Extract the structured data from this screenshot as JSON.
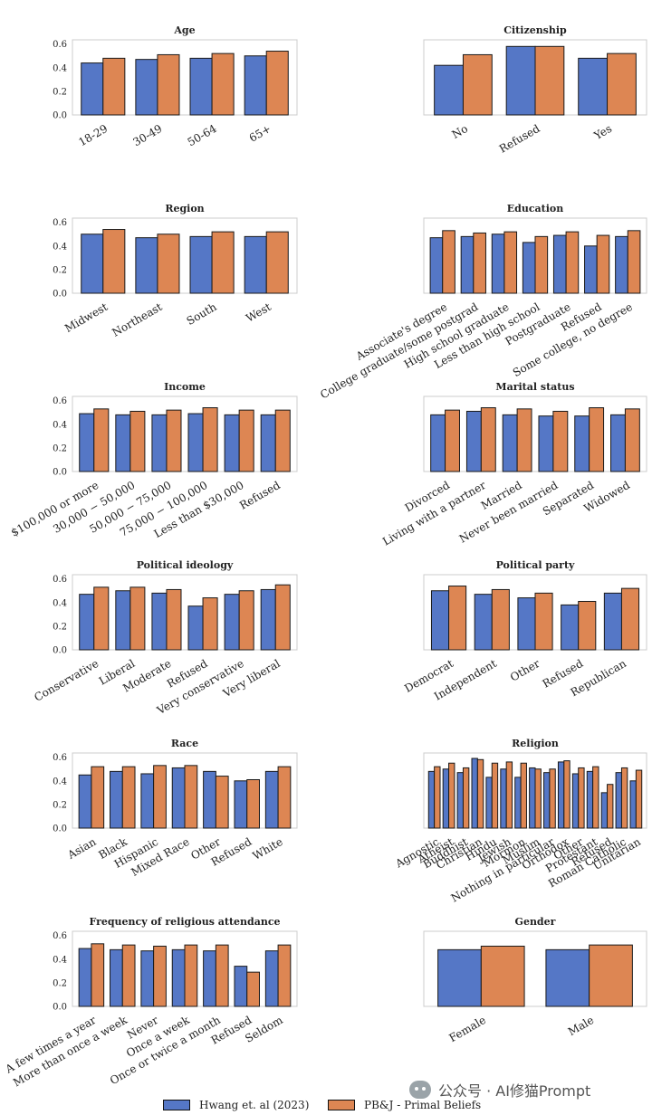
{
  "colors": {
    "series_a": "#5577c6",
    "series_b": "#dd8653",
    "edge": "#1a1a1a",
    "frame": "#cccccc"
  },
  "legend": {
    "series_a": "Hwang et. al (2023)",
    "series_b": "PB&J - Primal Beliefs"
  },
  "watermark": {
    "icon": "wechat-icon",
    "text": "公众号 · AI修猫Prompt"
  },
  "chart_data": [
    {
      "type": "bar",
      "title": "Age",
      "ylim": [
        0,
        0.6
      ],
      "yticks": [
        "0.0",
        "0.2",
        "0.4",
        "0.6"
      ],
      "categories": [
        "18-29",
        "30-49",
        "50-64",
        "65+"
      ],
      "series": [
        {
          "name": "Hwang et. al (2023)",
          "values": [
            0.44,
            0.47,
            0.48,
            0.5
          ]
        },
        {
          "name": "PB&J - Primal Beliefs",
          "values": [
            0.48,
            0.51,
            0.52,
            0.54
          ]
        }
      ]
    },
    {
      "type": "bar",
      "title": "Citizenship",
      "ylim": [
        0,
        0.6
      ],
      "yticks": [],
      "categories": [
        "No",
        "Refused",
        "Yes"
      ],
      "series": [
        {
          "name": "Hwang et. al (2023)",
          "values": [
            0.42,
            0.58,
            0.48
          ]
        },
        {
          "name": "PB&J - Primal Beliefs",
          "values": [
            0.51,
            0.58,
            0.52
          ]
        }
      ]
    },
    {
      "type": "bar",
      "title": "Region",
      "ylim": [
        0,
        0.6
      ],
      "yticks": [
        "0.0",
        "0.2",
        "0.4",
        "0.6"
      ],
      "categories": [
        "Midwest",
        "Northeast",
        "South",
        "West"
      ],
      "series": [
        {
          "name": "Hwang et. al (2023)",
          "values": [
            0.5,
            0.47,
            0.48,
            0.48
          ]
        },
        {
          "name": "PB&J - Primal Beliefs",
          "values": [
            0.54,
            0.5,
            0.52,
            0.52
          ]
        }
      ]
    },
    {
      "type": "bar",
      "title": "Education",
      "ylim": [
        0,
        0.6
      ],
      "yticks": [],
      "categories": [
        "Associate's degree",
        "College graduate/some postgrad",
        "High school graduate",
        "Less than high school",
        "Postgraduate",
        "Refused",
        "Some college, no degree"
      ],
      "series": [
        {
          "name": "Hwang et. al (2023)",
          "values": [
            0.47,
            0.48,
            0.5,
            0.43,
            0.49,
            0.4,
            0.48
          ]
        },
        {
          "name": "PB&J - Primal Beliefs",
          "values": [
            0.53,
            0.51,
            0.52,
            0.48,
            0.52,
            0.49,
            0.53
          ]
        }
      ]
    },
    {
      "type": "bar",
      "title": "Income",
      "ylim": [
        0,
        0.6
      ],
      "yticks": [
        "0.0",
        "0.2",
        "0.4",
        "0.6"
      ],
      "categories": [
        "$100,000 or more",
        "30,000 − 50,000",
        "50,000 − 75,000",
        "75,000 − 100,000",
        "Less than $30,000",
        "Refused"
      ],
      "series": [
        {
          "name": "Hwang et. al (2023)",
          "values": [
            0.49,
            0.48,
            0.48,
            0.49,
            0.48,
            0.48
          ]
        },
        {
          "name": "PB&J - Primal Beliefs",
          "values": [
            0.53,
            0.51,
            0.52,
            0.54,
            0.52,
            0.52
          ]
        }
      ]
    },
    {
      "type": "bar",
      "title": "Marital status",
      "ylim": [
        0,
        0.6
      ],
      "yticks": [],
      "categories": [
        "Divorced",
        "Living with a partner",
        "Married",
        "Never been married",
        "Separated",
        "Widowed"
      ],
      "series": [
        {
          "name": "Hwang et. al (2023)",
          "values": [
            0.48,
            0.51,
            0.48,
            0.47,
            0.47,
            0.48
          ]
        },
        {
          "name": "PB&J - Primal Beliefs",
          "values": [
            0.52,
            0.54,
            0.53,
            0.51,
            0.54,
            0.53
          ]
        }
      ]
    },
    {
      "type": "bar",
      "title": "Political ideology",
      "ylim": [
        0,
        0.6
      ],
      "yticks": [
        "0.0",
        "0.2",
        "0.4",
        "0.6"
      ],
      "categories": [
        "Conservative",
        "Liberal",
        "Moderate",
        "Refused",
        "Very conservative",
        "Very liberal"
      ],
      "series": [
        {
          "name": "Hwang et. al (2023)",
          "values": [
            0.47,
            0.5,
            0.48,
            0.37,
            0.47,
            0.51
          ]
        },
        {
          "name": "PB&J - Primal Beliefs",
          "values": [
            0.53,
            0.53,
            0.51,
            0.44,
            0.5,
            0.55
          ]
        }
      ]
    },
    {
      "type": "bar",
      "title": "Political party",
      "ylim": [
        0,
        0.6
      ],
      "yticks": [],
      "categories": [
        "Democrat",
        "Independent",
        "Other",
        "Refused",
        "Republican"
      ],
      "series": [
        {
          "name": "Hwang et. al (2023)",
          "values": [
            0.5,
            0.47,
            0.44,
            0.38,
            0.48
          ]
        },
        {
          "name": "PB&J - Primal Beliefs",
          "values": [
            0.54,
            0.51,
            0.48,
            0.41,
            0.52
          ]
        }
      ]
    },
    {
      "type": "bar",
      "title": "Race",
      "ylim": [
        0,
        0.6
      ],
      "yticks": [
        "0.0",
        "0.2",
        "0.4",
        "0.6"
      ],
      "categories": [
        "Asian",
        "Black",
        "Hispanic",
        "Mixed Race",
        "Other",
        "Refused",
        "White"
      ],
      "series": [
        {
          "name": "Hwang et. al (2023)",
          "values": [
            0.45,
            0.48,
            0.46,
            0.51,
            0.48,
            0.4,
            0.48
          ]
        },
        {
          "name": "PB&J - Primal Beliefs",
          "values": [
            0.52,
            0.52,
            0.53,
            0.53,
            0.44,
            0.41,
            0.52
          ]
        }
      ]
    },
    {
      "type": "bar",
      "title": "Religion",
      "ylim": [
        0,
        0.6
      ],
      "yticks": [],
      "categories": [
        "Agnostic",
        "Atheist",
        "Buddhist",
        "Christian",
        "Hindu",
        "Jewish",
        "Mormon",
        "Muslim",
        "Nothing in particular",
        "Orthodox",
        "Other",
        "Protestant",
        "Refused",
        "Roman Catholic",
        "Unitarian"
      ],
      "series": [
        {
          "name": "Hwang et. al (2023)",
          "values": [
            0.48,
            0.5,
            0.47,
            0.59,
            0.43,
            0.5,
            0.43,
            0.51,
            0.47,
            0.56,
            0.46,
            0.48,
            0.3,
            0.47,
            0.4
          ]
        },
        {
          "name": "PB&J - Primal Beliefs",
          "values": [
            0.52,
            0.55,
            0.51,
            0.58,
            0.55,
            0.56,
            0.55,
            0.5,
            0.5,
            0.57,
            0.51,
            0.52,
            0.37,
            0.51,
            0.49
          ]
        }
      ]
    },
    {
      "type": "bar",
      "title": "Frequency of religious attendance",
      "ylim": [
        0,
        0.6
      ],
      "yticks": [
        "0.0",
        "0.2",
        "0.4",
        "0.6"
      ],
      "categories": [
        "A few times a year",
        "More than once a week",
        "Never",
        "Once a week",
        "Once or twice a month",
        "Refused",
        "Seldom"
      ],
      "series": [
        {
          "name": "Hwang et. al (2023)",
          "values": [
            0.49,
            0.48,
            0.47,
            0.48,
            0.47,
            0.34,
            0.47
          ]
        },
        {
          "name": "PB&J - Primal Beliefs",
          "values": [
            0.53,
            0.52,
            0.51,
            0.52,
            0.52,
            0.29,
            0.52
          ]
        }
      ]
    },
    {
      "type": "bar",
      "title": "Gender",
      "ylim": [
        0,
        0.6
      ],
      "yticks": [],
      "categories": [
        "Female",
        "Male"
      ],
      "series": [
        {
          "name": "Hwang et. al (2023)",
          "values": [
            0.48,
            0.48
          ]
        },
        {
          "name": "PB&J - Primal Beliefs",
          "values": [
            0.51,
            0.52
          ]
        }
      ]
    }
  ]
}
